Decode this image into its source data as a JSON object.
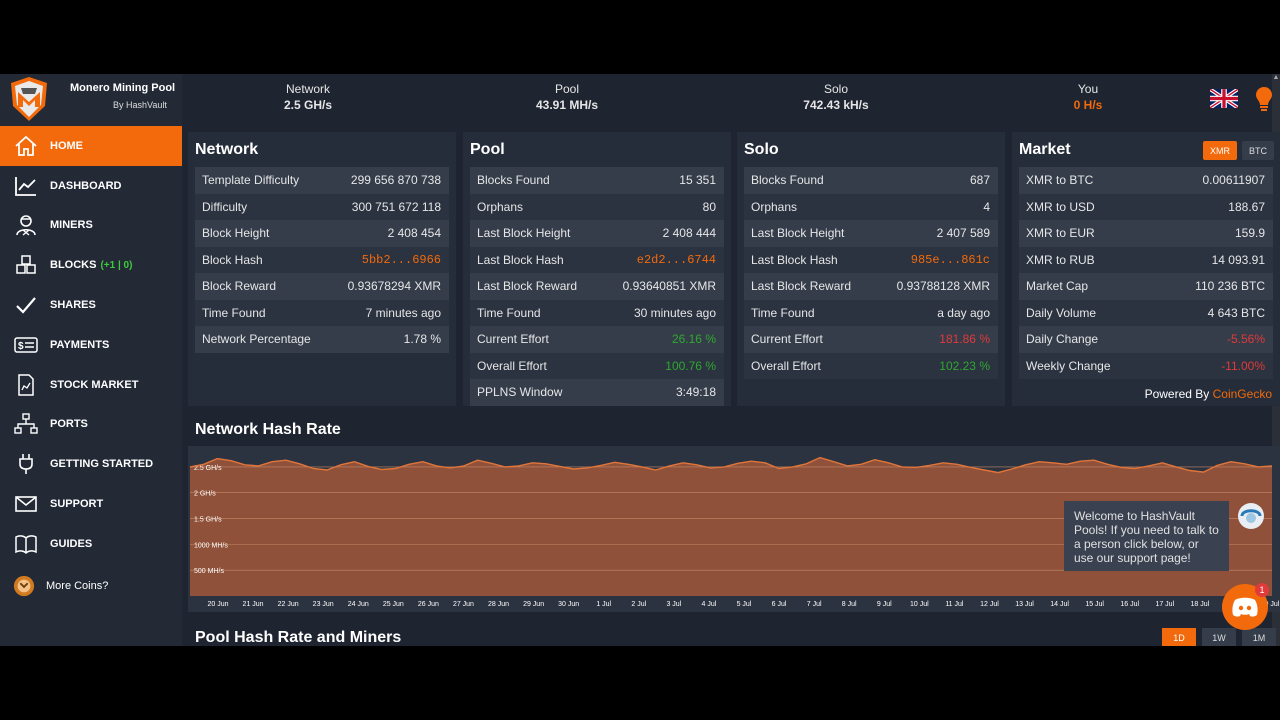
{
  "brand": {
    "title": "Monero Mining Pool",
    "subtitle": "By HashVault"
  },
  "sidebar": {
    "items": [
      {
        "label": "HOME",
        "icon": "home-icon"
      },
      {
        "label": "DASHBOARD",
        "icon": "chart-line-icon"
      },
      {
        "label": "MINERS",
        "icon": "miner-icon"
      },
      {
        "label": "BLOCKS",
        "icon": "blocks-icon",
        "badge": "(+1 | 0)"
      },
      {
        "label": "SHARES",
        "icon": "check-icon"
      },
      {
        "label": "PAYMENTS",
        "icon": "payment-icon"
      },
      {
        "label": "STOCK MARKET",
        "icon": "document-chart-icon"
      },
      {
        "label": "PORTS",
        "icon": "network-icon"
      },
      {
        "label": "GETTING STARTED",
        "icon": "plug-icon"
      },
      {
        "label": "SUPPORT",
        "icon": "mail-icon"
      },
      {
        "label": "GUIDES",
        "icon": "book-icon"
      },
      {
        "label": "More Coins?",
        "icon": "coins-icon"
      }
    ]
  },
  "topbar": {
    "network": {
      "label": "Network",
      "value": "2.5 GH/s"
    },
    "pool": {
      "label": "Pool",
      "value": "43.91 MH/s"
    },
    "solo": {
      "label": "Solo",
      "value": "742.43 kH/s"
    },
    "you": {
      "label": "You",
      "value": "0 H/s"
    }
  },
  "network_panel": {
    "title": "Network",
    "rows": [
      {
        "label": "Template Difficulty",
        "value": "299 656 870 738"
      },
      {
        "label": "Difficulty",
        "value": "300 751 672 118"
      },
      {
        "label": "Block Height",
        "value": "2 408 454"
      },
      {
        "label": "Block Hash",
        "value": "5bb2...6966"
      },
      {
        "label": "Block Reward",
        "value": "0.93678294 XMR"
      },
      {
        "label": "Time Found",
        "value": "7 minutes ago"
      },
      {
        "label": "Network Percentage",
        "value": "1.78 %"
      }
    ]
  },
  "pool_panel": {
    "title": "Pool",
    "rows": [
      {
        "label": "Blocks Found",
        "value": "15 351"
      },
      {
        "label": "Orphans",
        "value": "80"
      },
      {
        "label": "Last Block Height",
        "value": "2 408 444"
      },
      {
        "label": "Last Block Hash",
        "value": "e2d2...6744"
      },
      {
        "label": "Last Block Reward",
        "value": "0.93640851 XMR"
      },
      {
        "label": "Time Found",
        "value": "30 minutes ago"
      },
      {
        "label": "Current Effort",
        "value": "26.16 %"
      },
      {
        "label": "Overall Effort",
        "value": "100.76 %"
      },
      {
        "label": "PPLNS Window",
        "value": "3:49:18"
      }
    ]
  },
  "solo_panel": {
    "title": "Solo",
    "rows": [
      {
        "label": "Blocks Found",
        "value": "687"
      },
      {
        "label": "Orphans",
        "value": "4"
      },
      {
        "label": "Last Block Height",
        "value": "2 407 589"
      },
      {
        "label": "Last Block Hash",
        "value": "985e...861c"
      },
      {
        "label": "Last Block Reward",
        "value": "0.93788128 XMR"
      },
      {
        "label": "Time Found",
        "value": "a day ago"
      },
      {
        "label": "Current Effort",
        "value": "181.86 %"
      },
      {
        "label": "Overall Effort",
        "value": "102.23 %"
      }
    ]
  },
  "market_panel": {
    "title": "Market",
    "buttons": [
      "XMR",
      "BTC"
    ],
    "rows": [
      {
        "label": "XMR to BTC",
        "value": "0.00611907"
      },
      {
        "label": "XMR to USD",
        "value": "188.67"
      },
      {
        "label": "XMR to EUR",
        "value": "159.9"
      },
      {
        "label": "XMR to RUB",
        "value": "14 093.91"
      },
      {
        "label": "Market Cap",
        "value": "110 236 BTC"
      },
      {
        "label": "Daily Volume",
        "value": "4 643 BTC"
      },
      {
        "label": "Daily Change",
        "value": "-5.56%"
      },
      {
        "label": "Weekly Change",
        "value": "-11.00%"
      }
    ],
    "powered_by": "Powered By",
    "powered_link": "CoinGecko"
  },
  "network_chart": {
    "title": "Network Hash Rate"
  },
  "pool_chart": {
    "title": "Pool Hash Rate and Miners",
    "timeframes": [
      "1D",
      "1W",
      "1M"
    ]
  },
  "chat": {
    "welcome": "Welcome to HashVault Pools! If you need to talk to a person click below, or use our support page!",
    "badge": "1"
  },
  "colors": {
    "accent": "#f26a0b",
    "positive": "#2fa82f",
    "negative": "#e03a3a",
    "background": "#1e2430"
  },
  "chart_data": {
    "type": "area",
    "title": "Network Hash Rate",
    "y_ticks": [
      "500 MH/s",
      "1000 MH/s",
      "1.5 GH/s",
      "2 GH/s",
      "2.5 GH/s"
    ],
    "y_tick_values": [
      0.5,
      1.0,
      1.5,
      2.0,
      2.5
    ],
    "ylim": [
      0,
      2.75
    ],
    "x_ticks": [
      "20 Jun",
      "21 Jun",
      "22 Jun",
      "23 Jun",
      "24 Jun",
      "25 Jun",
      "26 Jun",
      "27 Jun",
      "28 Jun",
      "29 Jun",
      "30 Jun",
      "1 Jul",
      "2 Jul",
      "3 Jul",
      "4 Jul",
      "5 Jul",
      "6 Jul",
      "7 Jul",
      "8 Jul",
      "9 Jul",
      "10 Jul",
      "11 Jul",
      "12 Jul",
      "13 Jul",
      "14 Jul",
      "15 Jul",
      "16 Jul",
      "17 Jul",
      "18 Jul",
      "19 Jul",
      "20 Jul"
    ],
    "series": [
      {
        "values": [
          2.5,
          2.55,
          2.66,
          2.62,
          2.54,
          2.52,
          2.6,
          2.63,
          2.56,
          2.47,
          2.44,
          2.54,
          2.6,
          2.51,
          2.45,
          2.47,
          2.55,
          2.6,
          2.52,
          2.48,
          2.52,
          2.63,
          2.57,
          2.5,
          2.52,
          2.58,
          2.56,
          2.51,
          2.46,
          2.48,
          2.53,
          2.59,
          2.55,
          2.5,
          2.44,
          2.52,
          2.58,
          2.54,
          2.48,
          2.5,
          2.57,
          2.61,
          2.58,
          2.47,
          2.5,
          2.56,
          2.68,
          2.6,
          2.52,
          2.55,
          2.64,
          2.58,
          2.5,
          2.49,
          2.53,
          2.58,
          2.55,
          2.49,
          2.44,
          2.39,
          2.46,
          2.54,
          2.6,
          2.58,
          2.55,
          2.61,
          2.63,
          2.55,
          2.49,
          2.47,
          2.52,
          2.58,
          2.5,
          2.43,
          2.4,
          2.53,
          2.6,
          2.56,
          2.5,
          2.52
        ]
      }
    ]
  }
}
